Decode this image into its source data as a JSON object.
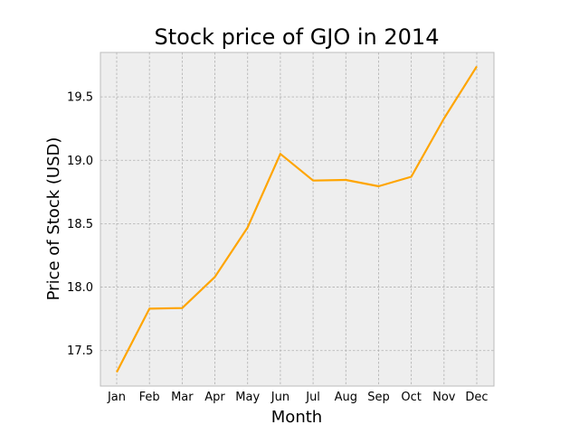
{
  "chart_data": {
    "type": "line",
    "title": "Stock price of GJO in 2014",
    "xlabel": "Month",
    "ylabel": "Price of Stock (USD)",
    "categories": [
      "Jan",
      "Feb",
      "Mar",
      "Apr",
      "May",
      "Jun",
      "Jul",
      "Aug",
      "Sep",
      "Oct",
      "Nov",
      "Dec"
    ],
    "series": [
      {
        "values": [
          17.33,
          17.83,
          17.835,
          18.08,
          18.47,
          19.05,
          18.84,
          18.845,
          18.795,
          18.87,
          19.33,
          19.74
        ],
        "color": "#ffa500"
      }
    ],
    "ylim": [
      17.22,
      19.85
    ],
    "yticks": [
      17.5,
      18.0,
      18.5,
      19.0,
      19.5
    ],
    "ytick_labels": [
      "17.5",
      "18.0",
      "18.5",
      "19.0",
      "19.5"
    ],
    "grid": true,
    "background": "#eeeeee"
  }
}
